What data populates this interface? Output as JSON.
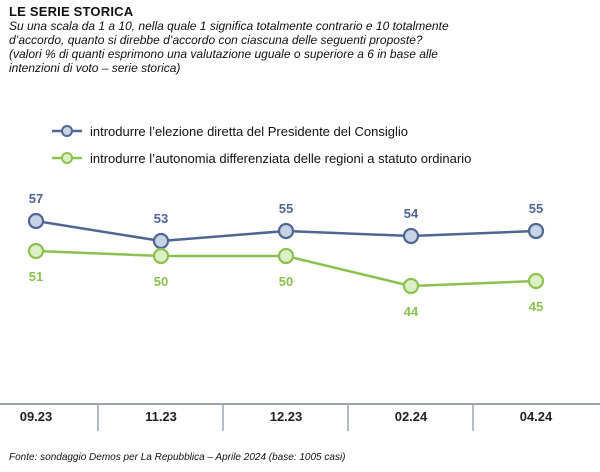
{
  "header": {
    "title": "LE SERIE STORICA",
    "subtitle_lines": [
      "Su una scala da 1 a 10, nella quale 1 significa totalmente contrario e 10 totalmente",
      "d’accordo, quanto si direbbe d’accordo con ciascuna delle seguenti proposte?",
      "(valori % di quanti esprimono una valutazione uguale o superiore a 6 in base alle",
      "intenzioni di voto – serie storica)"
    ]
  },
  "source": "Fonte: sondaggio Demos per La Repubblica – Aprile 2024 (base: 1005 casi)",
  "colors": {
    "series1": "#4f6691",
    "series1_fill": "#c8d3e6",
    "series2": "#8cc152",
    "series2_fill": "#dcefc6",
    "axis": "#9aa4b2",
    "tick_text": "#222222"
  },
  "chart_data": {
    "type": "line",
    "categories": [
      "09.23",
      "11.23",
      "12.23",
      "02.24",
      "04.24"
    ],
    "series": [
      {
        "name": "introdurre  l’elezione diretta del Presidente del Consiglio",
        "values": [
          57,
          53,
          55,
          54,
          55
        ]
      },
      {
        "name": "introdurre  l’autonomia differenziata delle regioni a statuto ordinario",
        "values": [
          51,
          50,
          50,
          44,
          45
        ]
      }
    ],
    "legend_position": "top-left",
    "grid": false
  }
}
